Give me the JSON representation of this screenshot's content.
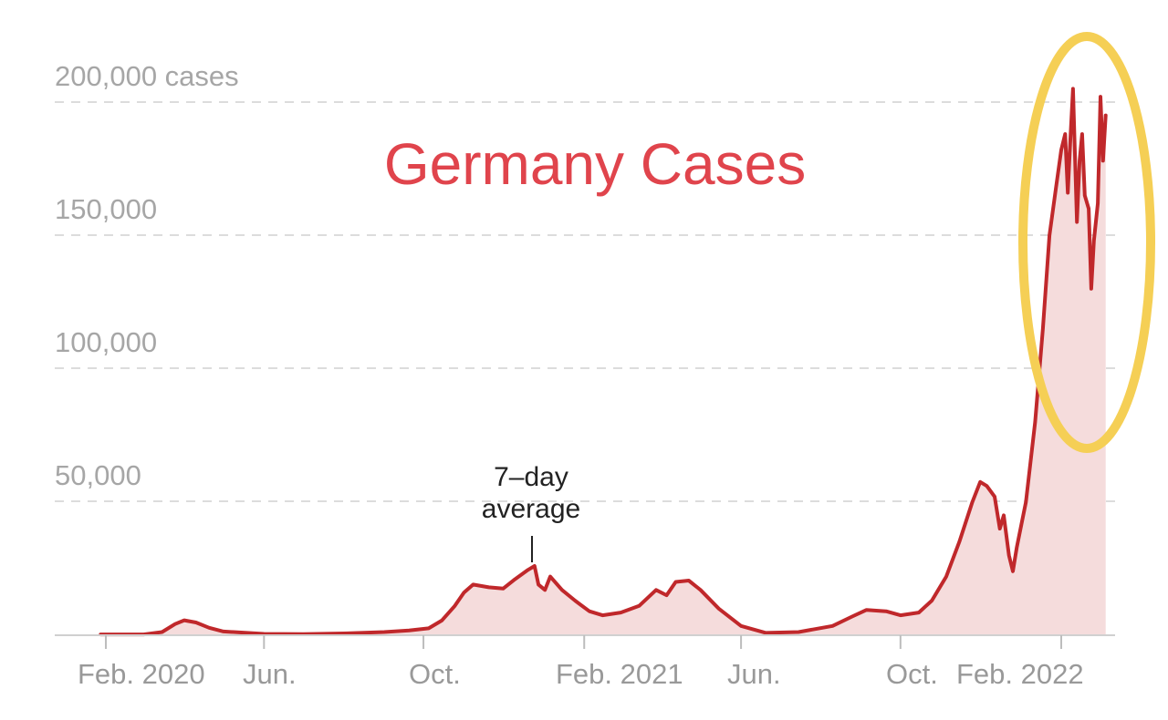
{
  "chart_data": {
    "type": "area",
    "title": "Germany Cases",
    "xlabel": "",
    "ylabel": "",
    "y_tick_labels": [
      "200,000 cases",
      "150,000",
      "100,000",
      "50,000"
    ],
    "y_ticks": [
      200000,
      150000,
      100000,
      50000
    ],
    "ylim": [
      0,
      200000
    ],
    "x_tick_labels": [
      "Feb. 2020",
      "Jun.",
      "Oct.",
      "Feb. 2021",
      "Jun.",
      "Oct.",
      "Feb. 2022"
    ],
    "x_ticks": [
      "2020-02-01",
      "2020-06-01",
      "2020-10-01",
      "2021-02-01",
      "2021-06-01",
      "2021-10-01",
      "2022-02-01"
    ],
    "xlim": [
      "2020-01-28",
      "2022-03-10"
    ],
    "grid": true,
    "legend": "none",
    "annotations": [
      {
        "text_lines": [
          "7–day",
          "average"
        ],
        "x": "2020-12-25",
        "y": 26000
      }
    ],
    "highlight": {
      "shape": "ellipse",
      "color": "#f5cf55",
      "x_range": [
        "2022-01-10",
        "2022-03-15"
      ],
      "y_range": [
        68000,
        225000
      ]
    },
    "series": [
      {
        "line_color": "#c0282b",
        "fill_color": "#f5dcdc",
        "points": [
          [
            "2020-01-28",
            300
          ],
          [
            "2020-02-15",
            300
          ],
          [
            "2020-03-01",
            300
          ],
          [
            "2020-03-15",
            1200
          ],
          [
            "2020-03-25",
            4200
          ],
          [
            "2020-04-01",
            5600
          ],
          [
            "2020-04-10",
            4800
          ],
          [
            "2020-04-20",
            2800
          ],
          [
            "2020-05-01",
            1400
          ],
          [
            "2020-06-01",
            500
          ],
          [
            "2020-07-01",
            400
          ],
          [
            "2020-08-01",
            700
          ],
          [
            "2020-09-01",
            1200
          ],
          [
            "2020-09-20",
            1800
          ],
          [
            "2020-10-05",
            2600
          ],
          [
            "2020-10-15",
            5500
          ],
          [
            "2020-10-25",
            11000
          ],
          [
            "2020-11-01",
            16000
          ],
          [
            "2020-11-08",
            19000
          ],
          [
            "2020-11-20",
            18000
          ],
          [
            "2020-12-01",
            17500
          ],
          [
            "2020-12-10",
            21000
          ],
          [
            "2020-12-20",
            24500
          ],
          [
            "2020-12-25",
            26000
          ],
          [
            "2020-12-28",
            19000
          ],
          [
            "2021-01-02",
            17000
          ],
          [
            "2021-01-06",
            22000
          ],
          [
            "2021-01-15",
            17000
          ],
          [
            "2021-01-25",
            13000
          ],
          [
            "2021-02-05",
            9000
          ],
          [
            "2021-02-15",
            7500
          ],
          [
            "2021-03-01",
            8500
          ],
          [
            "2021-03-15",
            11000
          ],
          [
            "2021-03-28",
            17000
          ],
          [
            "2021-04-05",
            15000
          ],
          [
            "2021-04-12",
            20000
          ],
          [
            "2021-04-22",
            20500
          ],
          [
            "2021-05-01",
            17000
          ],
          [
            "2021-05-15",
            10000
          ],
          [
            "2021-06-01",
            3500
          ],
          [
            "2021-06-20",
            900
          ],
          [
            "2021-07-15",
            1200
          ],
          [
            "2021-08-10",
            3500
          ],
          [
            "2021-08-25",
            7000
          ],
          [
            "2021-09-05",
            9500
          ],
          [
            "2021-09-20",
            9000
          ],
          [
            "2021-10-01",
            7500
          ],
          [
            "2021-10-15",
            8500
          ],
          [
            "2021-10-25",
            13000
          ],
          [
            "2021-11-05",
            22000
          ],
          [
            "2021-11-15",
            35000
          ],
          [
            "2021-11-25",
            50000
          ],
          [
            "2021-12-01",
            57500
          ],
          [
            "2021-12-06",
            56000
          ],
          [
            "2021-12-12",
            52000
          ],
          [
            "2021-12-16",
            40000
          ],
          [
            "2021-12-19",
            45000
          ],
          [
            "2021-12-23",
            30000
          ],
          [
            "2021-12-26",
            24000
          ],
          [
            "2021-12-29",
            33000
          ],
          [
            "2022-01-05",
            50000
          ],
          [
            "2022-01-12",
            80000
          ],
          [
            "2022-01-18",
            115000
          ],
          [
            "2022-01-23",
            150000
          ],
          [
            "2022-01-28",
            168000
          ],
          [
            "2022-02-01",
            182000
          ],
          [
            "2022-02-04",
            188000
          ],
          [
            "2022-02-06",
            166000
          ],
          [
            "2022-02-08",
            186000
          ],
          [
            "2022-02-10",
            205000
          ],
          [
            "2022-02-13",
            155000
          ],
          [
            "2022-02-15",
            178000
          ],
          [
            "2022-02-17",
            188000
          ],
          [
            "2022-02-19",
            165000
          ],
          [
            "2022-02-22",
            160000
          ],
          [
            "2022-02-24",
            130000
          ],
          [
            "2022-02-26",
            148000
          ],
          [
            "2022-03-01",
            162000
          ],
          [
            "2022-03-03",
            202000
          ],
          [
            "2022-03-05",
            178000
          ],
          [
            "2022-03-07",
            195000
          ]
        ]
      }
    ]
  }
}
